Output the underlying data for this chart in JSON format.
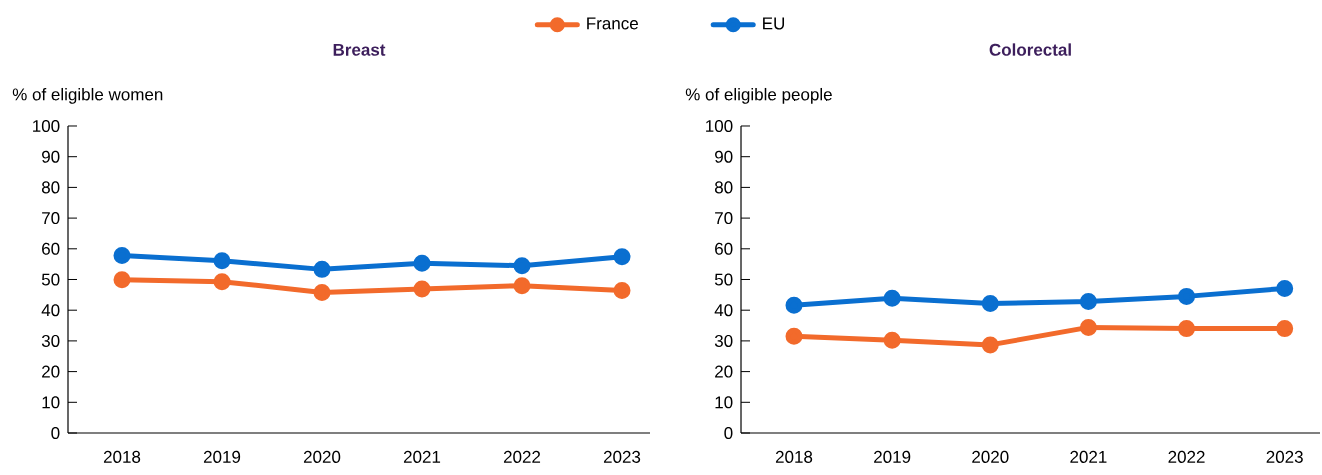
{
  "chart_data": [
    {
      "type": "line",
      "title": "Breast",
      "ylabel": "% of eligible women",
      "categories": [
        "2018",
        "2019",
        "2020",
        "2021",
        "2022",
        "2023"
      ],
      "ylim": [
        0,
        100
      ],
      "yticks": [
        0,
        10,
        20,
        30,
        40,
        50,
        60,
        70,
        80,
        90,
        100
      ],
      "marker": "circle",
      "legend": "top",
      "grid": false,
      "series": [
        {
          "name": "France",
          "color": "#f26a2b",
          "values": [
            49.9,
            49.3,
            45.8,
            46.9,
            48.0,
            46.4
          ]
        },
        {
          "name": "EU",
          "color": "#0a6fd0",
          "values": [
            57.8,
            56.1,
            53.3,
            55.3,
            54.5,
            57.4
          ]
        }
      ]
    },
    {
      "type": "line",
      "title": "Colorectal",
      "ylabel": "% of eligible people",
      "categories": [
        "2018",
        "2019",
        "2020",
        "2021",
        "2022",
        "2023"
      ],
      "ylim": [
        0,
        100
      ],
      "yticks": [
        0,
        10,
        20,
        30,
        40,
        50,
        60,
        70,
        80,
        90,
        100
      ],
      "marker": "circle",
      "grid": false,
      "series": [
        {
          "color": "#f26a2b",
          "values": [
            31.5,
            30.2,
            28.7,
            34.4,
            34.0,
            34.0
          ]
        },
        {
          "color": "#0a6fd0",
          "values": [
            41.6,
            43.9,
            42.2,
            42.8,
            44.5,
            47.1
          ]
        }
      ]
    }
  ]
}
